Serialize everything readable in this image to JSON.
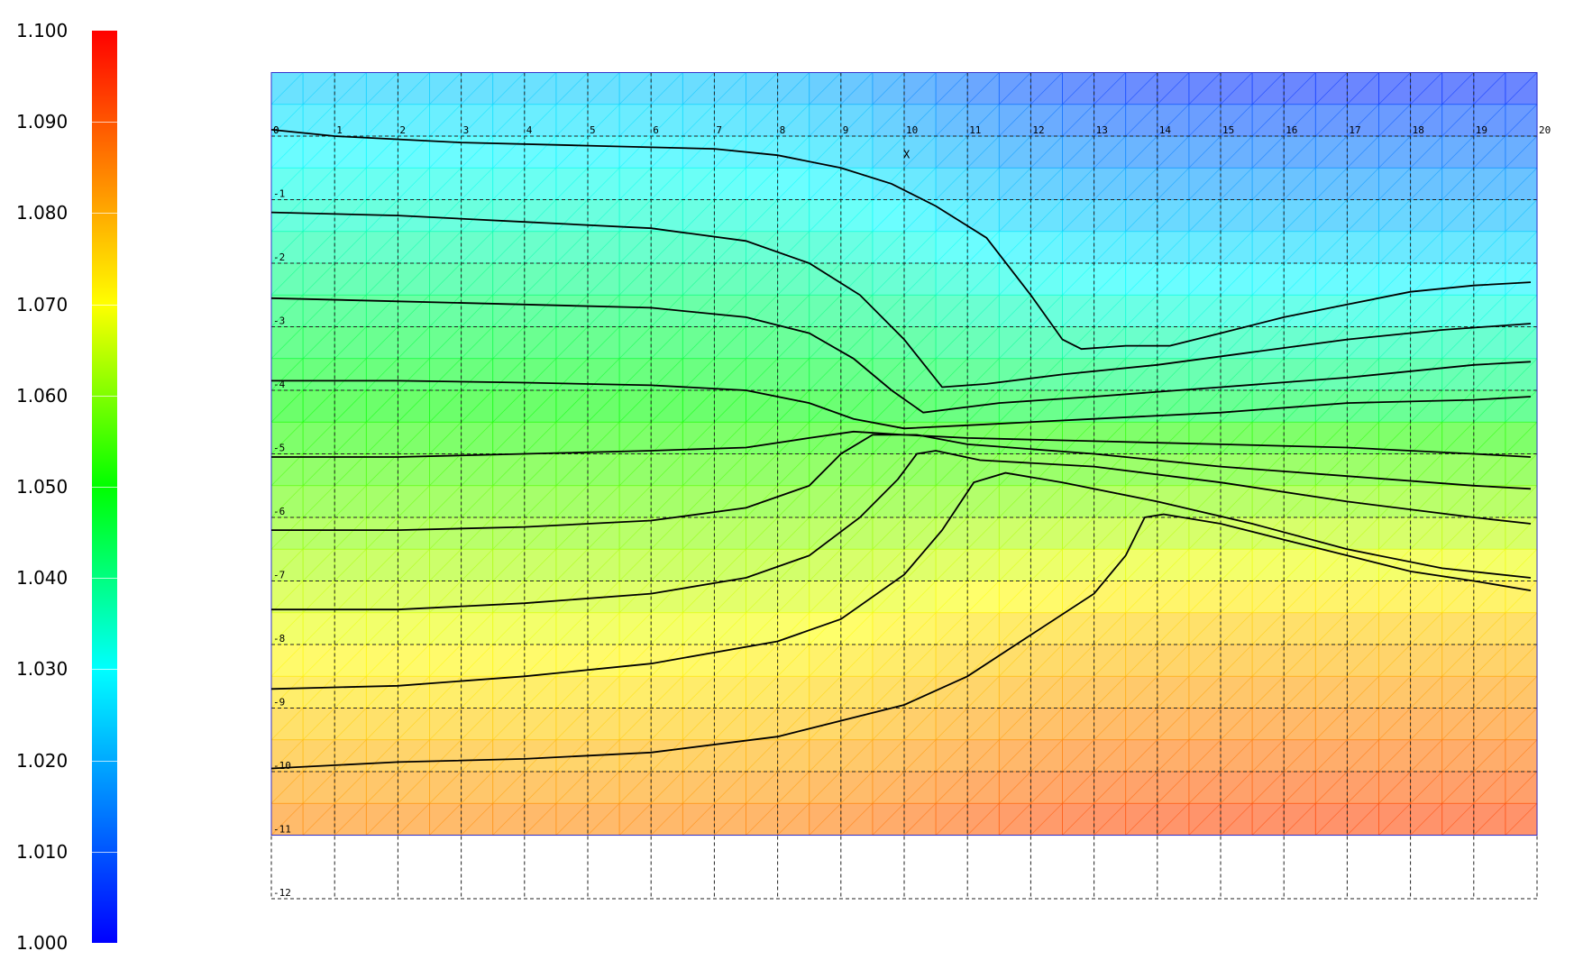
{
  "chart_data": {
    "type": "heatmap",
    "title": "",
    "xlabel": "X",
    "ylabel": "",
    "xlim": [
      0,
      20
    ],
    "ylim": [
      -12,
      1
    ],
    "field_extent": {
      "x": [
        0,
        20
      ],
      "y": [
        -11,
        1
      ]
    },
    "x_ticks": [
      "0",
      "1",
      "2",
      "3",
      "4",
      "5",
      "6",
      "7",
      "8",
      "9",
      "10",
      "11",
      "12",
      "13",
      "14",
      "15",
      "16",
      "17",
      "18",
      "19",
      "20"
    ],
    "y_ticks": [
      "0",
      "-1",
      "-2",
      "-3",
      "-4",
      "-5",
      "-6",
      "-7",
      "-8",
      "-9",
      "-10",
      "-11",
      "-12"
    ],
    "grid": "on",
    "grid_style": "dashed",
    "colorbar": {
      "min": 1.0,
      "max": 1.1,
      "position": "left",
      "colors": [
        "#0000ff",
        "#00ffff",
        "#00ff00",
        "#ffff00",
        "#ff0000"
      ],
      "tick_labels": [
        "1.100",
        "1.090",
        "1.080",
        "1.070",
        "1.060",
        "1.050",
        "1.040",
        "1.030",
        "1.020",
        "1.010",
        "1.000"
      ]
    },
    "contours": [
      {
        "points": [
          [
            0,
            0.1
          ],
          [
            1,
            0
          ],
          [
            3,
            -0.1
          ],
          [
            5,
            -0.15
          ],
          [
            7,
            -0.2
          ],
          [
            8,
            -0.3
          ],
          [
            9,
            -0.5
          ],
          [
            9.8,
            -0.75
          ],
          [
            10.5,
            -1.1
          ],
          [
            11.3,
            -1.6
          ],
          [
            12,
            -2.5
          ],
          [
            12.5,
            -3.2
          ],
          [
            12.8,
            -3.35
          ],
          [
            13.5,
            -3.3
          ],
          [
            14.2,
            -3.3
          ],
          [
            15,
            -3.1
          ],
          [
            16,
            -2.85
          ],
          [
            17,
            -2.65
          ],
          [
            18,
            -2.45
          ],
          [
            19,
            -2.35
          ],
          [
            19.9,
            -2.3
          ]
        ]
      },
      {
        "points": [
          [
            0,
            -1.2
          ],
          [
            2,
            -1.25
          ],
          [
            4,
            -1.35
          ],
          [
            6,
            -1.45
          ],
          [
            7.5,
            -1.65
          ],
          [
            8.5,
            -2.0
          ],
          [
            9.3,
            -2.5
          ],
          [
            10,
            -3.2
          ],
          [
            10.6,
            -3.95
          ],
          [
            11.3,
            -3.9
          ],
          [
            12.5,
            -3.75
          ],
          [
            14,
            -3.6
          ],
          [
            15.5,
            -3.4
          ],
          [
            17,
            -3.2
          ],
          [
            18.5,
            -3.05
          ],
          [
            19.9,
            -2.95
          ]
        ]
      },
      {
        "points": [
          [
            0,
            -2.55
          ],
          [
            2,
            -2.6
          ],
          [
            4,
            -2.65
          ],
          [
            6,
            -2.7
          ],
          [
            7.5,
            -2.85
          ],
          [
            8.5,
            -3.1
          ],
          [
            9.2,
            -3.5
          ],
          [
            9.8,
            -4.0
          ],
          [
            10.3,
            -4.35
          ],
          [
            11.5,
            -4.2
          ],
          [
            13,
            -4.1
          ],
          [
            15,
            -3.95
          ],
          [
            17,
            -3.8
          ],
          [
            19,
            -3.6
          ],
          [
            19.9,
            -3.55
          ]
        ]
      },
      {
        "points": [
          [
            0,
            -3.85
          ],
          [
            2,
            -3.85
          ],
          [
            4,
            -3.88
          ],
          [
            6,
            -3.92
          ],
          [
            7.5,
            -4.0
          ],
          [
            8.5,
            -4.2
          ],
          [
            9.2,
            -4.45
          ],
          [
            10,
            -4.6
          ],
          [
            11,
            -4.55
          ],
          [
            13,
            -4.45
          ],
          [
            15,
            -4.35
          ],
          [
            17,
            -4.2
          ],
          [
            19,
            -4.15
          ],
          [
            19.9,
            -4.1
          ]
        ]
      },
      {
        "points": [
          [
            0,
            -5.05
          ],
          [
            2,
            -5.05
          ],
          [
            4,
            -5.0
          ],
          [
            6,
            -4.95
          ],
          [
            7.5,
            -4.9
          ],
          [
            8.5,
            -4.75
          ],
          [
            9.2,
            -4.65
          ],
          [
            10,
            -4.7
          ],
          [
            11,
            -4.75
          ],
          [
            13,
            -4.8
          ],
          [
            15,
            -4.85
          ],
          [
            17,
            -4.9
          ],
          [
            19,
            -5.0
          ],
          [
            19.9,
            -5.05
          ]
        ]
      },
      {
        "points": [
          [
            0,
            -6.2
          ],
          [
            2,
            -6.2
          ],
          [
            4,
            -6.15
          ],
          [
            6,
            -6.05
          ],
          [
            7.5,
            -5.85
          ],
          [
            8.5,
            -5.5
          ],
          [
            9.0,
            -5.0
          ],
          [
            9.5,
            -4.7
          ],
          [
            10.2,
            -4.7
          ],
          [
            11,
            -4.85
          ],
          [
            13,
            -5.0
          ],
          [
            15,
            -5.2
          ],
          [
            17,
            -5.35
          ],
          [
            19,
            -5.5
          ],
          [
            19.9,
            -5.55
          ]
        ]
      },
      {
        "points": [
          [
            0,
            -7.45
          ],
          [
            2,
            -7.45
          ],
          [
            4,
            -7.35
          ],
          [
            6,
            -7.2
          ],
          [
            7.5,
            -6.95
          ],
          [
            8.5,
            -6.6
          ],
          [
            9.3,
            -6.0
          ],
          [
            9.9,
            -5.4
          ],
          [
            10.2,
            -5.0
          ],
          [
            10.5,
            -4.95
          ],
          [
            11.2,
            -5.1
          ],
          [
            13,
            -5.2
          ],
          [
            15,
            -5.45
          ],
          [
            17,
            -5.75
          ],
          [
            19,
            -6.0
          ],
          [
            19.9,
            -6.1
          ]
        ]
      },
      {
        "points": [
          [
            0,
            -8.7
          ],
          [
            2,
            -8.65
          ],
          [
            4,
            -8.5
          ],
          [
            6,
            -8.3
          ],
          [
            8,
            -7.95
          ],
          [
            9,
            -7.6
          ],
          [
            10,
            -6.9
          ],
          [
            10.6,
            -6.2
          ],
          [
            11.1,
            -5.45
          ],
          [
            11.6,
            -5.3
          ],
          [
            12.5,
            -5.45
          ],
          [
            14,
            -5.75
          ],
          [
            15.5,
            -6.1
          ],
          [
            17,
            -6.5
          ],
          [
            18.5,
            -6.8
          ],
          [
            19.9,
            -6.95
          ]
        ]
      },
      {
        "points": [
          [
            0,
            -9.95
          ],
          [
            2,
            -9.85
          ],
          [
            4,
            -9.8
          ],
          [
            6,
            -9.7
          ],
          [
            8,
            -9.45
          ],
          [
            10,
            -8.95
          ],
          [
            11,
            -8.5
          ],
          [
            12,
            -7.85
          ],
          [
            13,
            -7.2
          ],
          [
            13.5,
            -6.6
          ],
          [
            13.8,
            -6.0
          ],
          [
            14.1,
            -5.95
          ],
          [
            15,
            -6.1
          ],
          [
            16,
            -6.35
          ],
          [
            17,
            -6.6
          ],
          [
            18,
            -6.85
          ],
          [
            19,
            -7.0
          ],
          [
            19.9,
            -7.15
          ]
        ]
      }
    ]
  }
}
